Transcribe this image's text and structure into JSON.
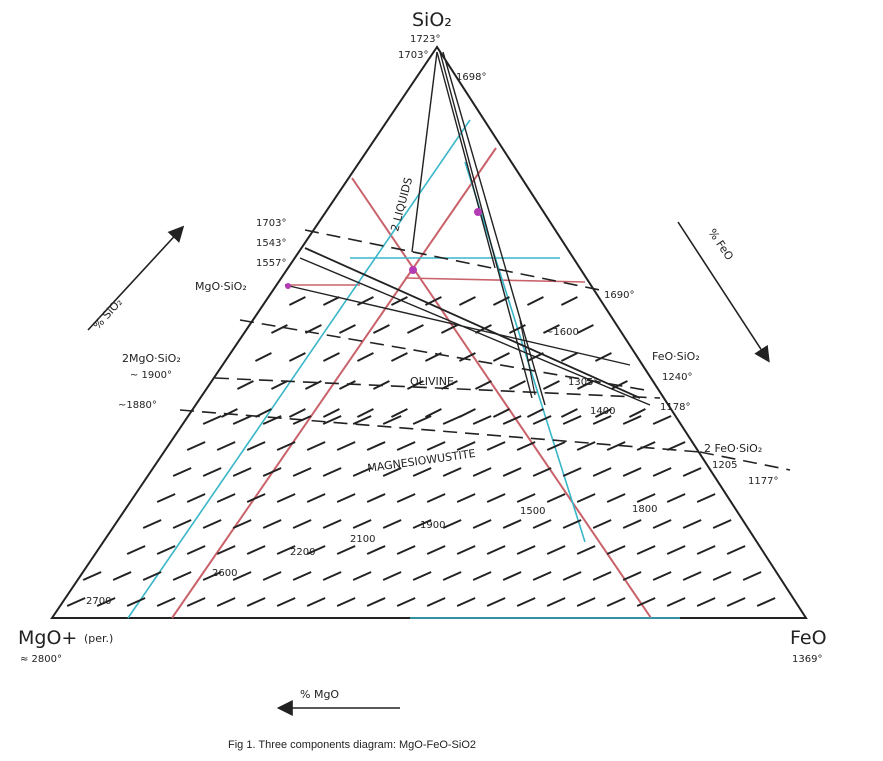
{
  "caption": "Fig 1. Three components diagram: MgO-FeO-SiO2",
  "vertices": {
    "top": {
      "label": "SiO₂",
      "temp": "1723°"
    },
    "left": {
      "label": "MgO+",
      "label_extra": "(per.)",
      "temp": "≈ 2800°"
    },
    "right": {
      "label": "FeO",
      "temp": "1369°"
    }
  },
  "axes": {
    "left": "% SiO₂",
    "right": "% FeO",
    "bottom": "% MgO"
  },
  "compound_labels": [
    {
      "id": "mgo-sio2",
      "text": "MgO·SiO₂"
    },
    {
      "id": "2mgo-sio2",
      "text": "2MgO·SiO₂"
    },
    {
      "id": "feo-sio2",
      "text": "FeO·SiO₂"
    },
    {
      "id": "2feo-sio2",
      "text": "2 FeO·SiO₂"
    }
  ],
  "field_labels": [
    {
      "id": "two-liquids",
      "text": "2 LIQUIDS"
    },
    {
      "id": "olivine",
      "text": "OLIVINE"
    },
    {
      "id": "magnesiowustite",
      "text": "MAGNESIOWUSTITE"
    }
  ],
  "temperature_labels": [
    {
      "id": "t-1703",
      "text": "1703°"
    },
    {
      "id": "t-1698",
      "text": "1698°"
    },
    {
      "id": "t-1703b",
      "text": "1703°"
    },
    {
      "id": "t-1543",
      "text": "1543°"
    },
    {
      "id": "t-1557",
      "text": "1557°"
    },
    {
      "id": "t-1690",
      "text": "1690°"
    },
    {
      "id": "t-1600",
      "text": "~1600"
    },
    {
      "id": "t-1900-2mgo",
      "text": "~ 1900°"
    },
    {
      "id": "t-1880",
      "text": "~1880°"
    },
    {
      "id": "t-1205",
      "text": "1205"
    },
    {
      "id": "t-1177",
      "text": "1177°"
    },
    {
      "id": "t-1178",
      "text": "1178°"
    },
    {
      "id": "t-1240",
      "text": "1240°"
    },
    {
      "id": "t-1305",
      "text": "1305°"
    },
    {
      "id": "t-1400",
      "text": "1400"
    },
    {
      "id": "t-1500",
      "text": "1500"
    },
    {
      "id": "t-1800",
      "text": "1800"
    },
    {
      "id": "t-1900",
      "text": "1900"
    },
    {
      "id": "t-2100",
      "text": "2100"
    },
    {
      "id": "t-2200",
      "text": "2200"
    },
    {
      "id": "t-2600",
      "text": "2600"
    },
    {
      "id": "t-2700",
      "text": "2700"
    }
  ],
  "colors": {
    "ink": "#222222",
    "red_line": "#c9626a",
    "cyan_line": "#3ab6c9",
    "magenta_mark": "#b33bb3"
  }
}
